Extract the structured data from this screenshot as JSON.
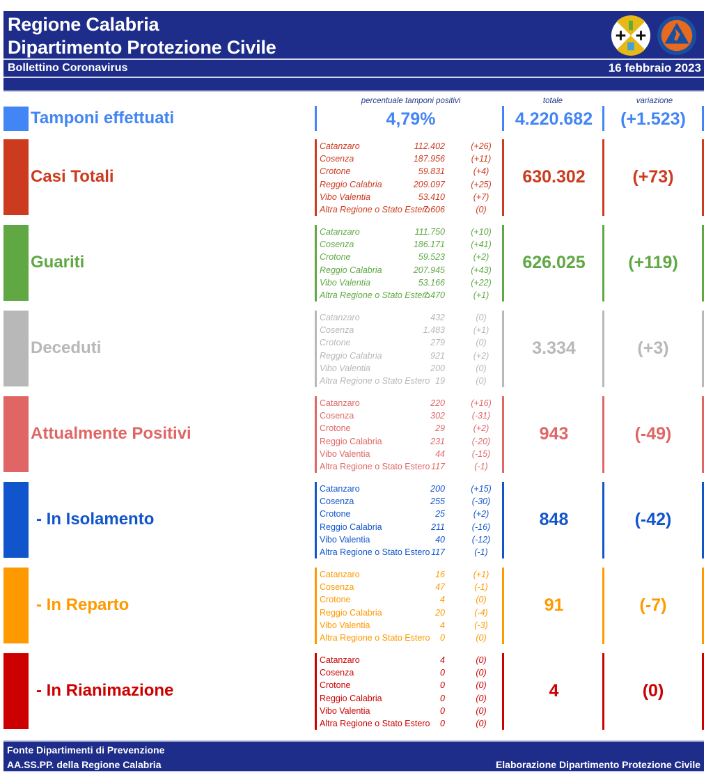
{
  "header": {
    "title_line1": "Regione Calabria",
    "title_line2": "Dipartimento Protezione Civile",
    "subtitle": "Bollettino Coronavirus",
    "date": "16 febbraio 2023",
    "logos": [
      "regione-calabria-emblem-icon",
      "protezione-civile-logo-icon"
    ]
  },
  "tamponi": {
    "label": "Tamponi effettuati",
    "color": "#4285f4",
    "pct_header": "percentuale tamponi positivi",
    "pct_value": "4,79%",
    "totale_header": "totale",
    "totale": "4.220.682",
    "variazione_header": "variazione",
    "variazione": "(+1.523)"
  },
  "sections": [
    {
      "id": "casi-totali",
      "label": "Casi Totali",
      "color": "#cc3b1f",
      "total": "630.302",
      "variation": "(+73)",
      "rows": [
        {
          "name": "Catanzaro",
          "value": "112.402",
          "delta": "(+26)"
        },
        {
          "name": "Cosenza",
          "value": "187.956",
          "delta": "(+11)"
        },
        {
          "name": "Crotone",
          "value": "59.831",
          "delta": "(+4)"
        },
        {
          "name": "Reggio Calabria",
          "value": "209.097",
          "delta": "(+25)"
        },
        {
          "name": "Vibo Valentia",
          "value": "53.410",
          "delta": "(+7)"
        },
        {
          "name": "Altra Regione o Stato Estero",
          "value": "7.606",
          "delta": "(0)"
        }
      ]
    },
    {
      "id": "guariti",
      "label": "Guariti",
      "color": "#5fa844",
      "total": "626.025",
      "variation": "(+119)",
      "rows": [
        {
          "name": "Catanzaro",
          "value": "111.750",
          "delta": "(+10)"
        },
        {
          "name": "Cosenza",
          "value": "186.171",
          "delta": "(+41)"
        },
        {
          "name": "Crotone",
          "value": "59.523",
          "delta": "(+2)"
        },
        {
          "name": "Reggio Calabria",
          "value": "207.945",
          "delta": "(+43)"
        },
        {
          "name": "Vibo Valentia",
          "value": "53.166",
          "delta": "(+22)"
        },
        {
          "name": "Altra Regione o Stato Estero",
          "value": "7.470",
          "delta": "(+1)"
        }
      ]
    },
    {
      "id": "deceduti",
      "label": "Deceduti",
      "color": "#b8b8b8",
      "total": "3.334",
      "variation": "(+3)",
      "rows": [
        {
          "name": "Catanzaro",
          "value": "432",
          "delta": "(0)"
        },
        {
          "name": "Cosenza",
          "value": "1.483",
          "delta": "(+1)"
        },
        {
          "name": "Crotone",
          "value": "279",
          "delta": "(0)"
        },
        {
          "name": "Reggio Calabria",
          "value": "921",
          "delta": "(+2)"
        },
        {
          "name": "Vibo Valentia",
          "value": "200",
          "delta": "(0)"
        },
        {
          "name": "Altra Regione o Stato Estero",
          "value": "19",
          "delta": "(0)"
        }
      ]
    },
    {
      "id": "attualmente-positivi",
      "label": "Attualmente Positivi",
      "color": "#e06666",
      "total": "943",
      "variation": "(-49)",
      "rows": [
        {
          "name": "Catanzaro",
          "value": "220",
          "delta": "(+16)"
        },
        {
          "name": "Cosenza",
          "value": "302",
          "delta": "(-31)"
        },
        {
          "name": "Crotone",
          "value": "29",
          "delta": "(+2)"
        },
        {
          "name": "Reggio Calabria",
          "value": "231",
          "delta": "(-20)"
        },
        {
          "name": "Vibo Valentia",
          "value": "44",
          "delta": "(-15)"
        },
        {
          "name": "Altra Regione o Stato Estero",
          "value": "117",
          "delta": "(-1)"
        }
      ]
    },
    {
      "id": "in-isolamento",
      "label": " - In Isolamento",
      "color": "#1155cc",
      "total": "848",
      "variation": "(-42)",
      "rows": [
        {
          "name": "Catanzaro",
          "value": "200",
          "delta": "(+15)"
        },
        {
          "name": "Cosenza",
          "value": "255",
          "delta": "(-30)"
        },
        {
          "name": "Crotone",
          "value": "25",
          "delta": "(+2)"
        },
        {
          "name": "Reggio Calabria",
          "value": "211",
          "delta": "(-16)"
        },
        {
          "name": "Vibo Valentia",
          "value": "40",
          "delta": "(-12)"
        },
        {
          "name": "Altra Regione o Stato Estero",
          "value": "117",
          "delta": "(-1)"
        }
      ]
    },
    {
      "id": "in-reparto",
      "label": " - In Reparto",
      "color": "#ff9900",
      "total": "91",
      "variation": "(-7)",
      "rows": [
        {
          "name": "Catanzaro",
          "value": "16",
          "delta": "(+1)"
        },
        {
          "name": "Cosenza",
          "value": "47",
          "delta": "(-1)"
        },
        {
          "name": "Crotone",
          "value": "4",
          "delta": "(0)"
        },
        {
          "name": "Reggio Calabria",
          "value": "20",
          "delta": "(-4)"
        },
        {
          "name": "Vibo Valentia",
          "value": "4",
          "delta": "(-3)"
        },
        {
          "name": "Altra Regione o Stato Estero",
          "value": "0",
          "delta": "(0)"
        }
      ]
    },
    {
      "id": "in-rianimazione",
      "label": " - In Rianimazione",
      "color": "#cc0000",
      "total": "4",
      "variation": "(0)",
      "rows": [
        {
          "name": "Catanzaro",
          "value": "4",
          "delta": "(0)"
        },
        {
          "name": "Cosenza",
          "value": "0",
          "delta": "(0)"
        },
        {
          "name": "Crotone",
          "value": "0",
          "delta": "(0)"
        },
        {
          "name": "Reggio Calabria",
          "value": "0",
          "delta": "(0)"
        },
        {
          "name": "Vibo Valentia",
          "value": "0",
          "delta": "(0)"
        },
        {
          "name": "Altra Regione o Stato Estero",
          "value": "0",
          "delta": "(0)"
        }
      ]
    }
  ],
  "footer": {
    "source_line1": "Fonte Dipartimenti di Prevenzione",
    "source_line2": "AA.SS.PP.  della Regione Calabria",
    "credit": "Elaborazione Dipartimento Protezione Civile"
  }
}
